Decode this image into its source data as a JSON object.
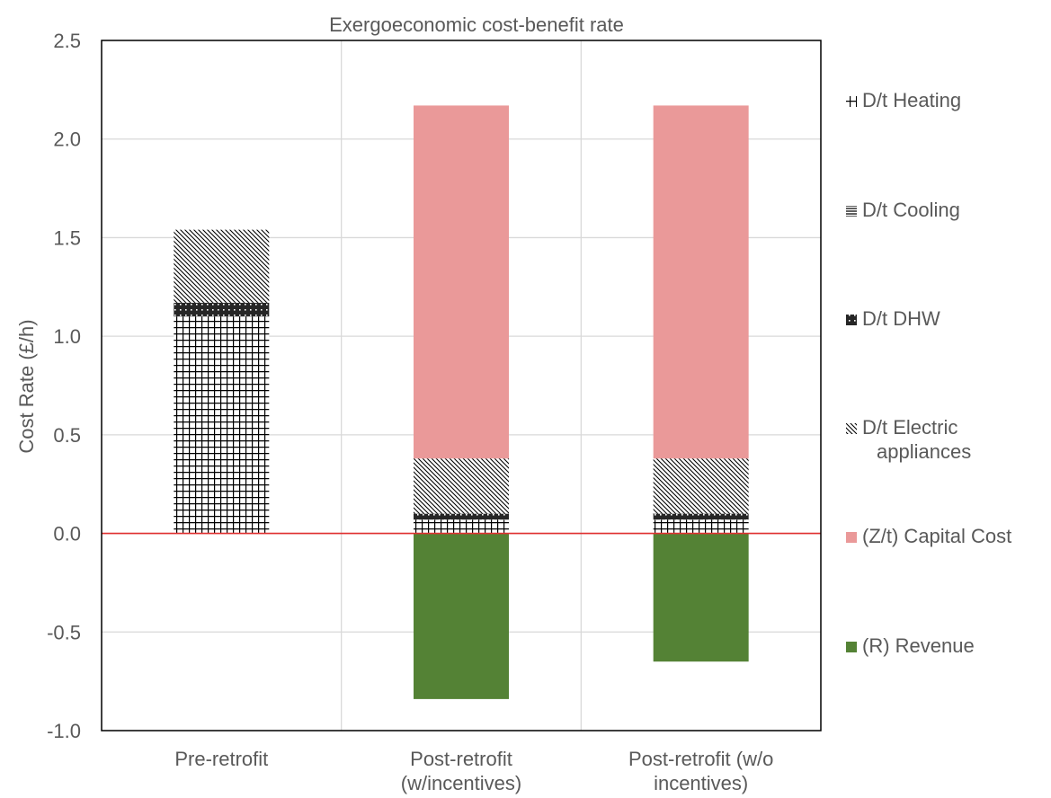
{
  "chart_data": {
    "type": "bar",
    "stacked": true,
    "title": "Exergoeconomic cost-benefit rate",
    "xlabel": "",
    "ylabel": "Cost Rate (£/h)",
    "ylim": [
      -1.0,
      2.5
    ],
    "yticks": [
      "2.5",
      "2.0",
      "1.5",
      "1.0",
      "0.5",
      "0.0",
      "-0.5",
      "-1.0"
    ],
    "grid": true,
    "legend_position": "right",
    "categories": [
      [
        "Pre-retrofit"
      ],
      [
        "Post-retrofit",
        "(w/incentives)"
      ],
      [
        "Post-retrofit (w/o",
        "incentives)"
      ]
    ],
    "series": [
      {
        "name": [
          "D/t Heating"
        ],
        "values": [
          1.1,
          0.07,
          0.07
        ],
        "pattern": "grid",
        "color": "#000000"
      },
      {
        "name": [
          "D/t Cooling"
        ],
        "values": [
          0.0,
          0.0,
          0.0
        ],
        "pattern": "hlines",
        "color": "#000000"
      },
      {
        "name": [
          "D/t DHW"
        ],
        "values": [
          0.07,
          0.03,
          0.03
        ],
        "pattern": "dots",
        "color": "#262626"
      },
      {
        "name": [
          "D/t Electric",
          "appliances"
        ],
        "values": [
          0.37,
          0.28,
          0.28
        ],
        "pattern": "diagonal",
        "color": "#000000"
      },
      {
        "name": [
          "(Z/t) Capital Cost"
        ],
        "values": [
          0.0,
          1.79,
          1.79
        ],
        "pattern": "solid",
        "color": "#ea9999"
      },
      {
        "name": [
          "(R) Revenue"
        ],
        "values": [
          0.0,
          -0.84,
          -0.65
        ],
        "pattern": "solid",
        "color": "#548235"
      }
    ],
    "zero_line_color": "#e03030"
  }
}
